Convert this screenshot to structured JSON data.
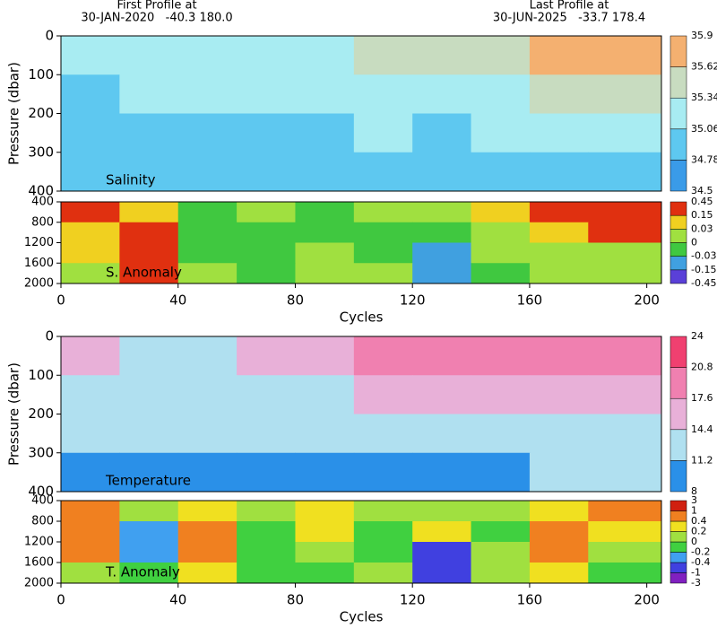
{
  "header": {
    "first_label": "First Profile at",
    "first_info": "30-JAN-2020   -40.3 180.0",
    "last_label": "Last Profile at",
    "last_info": "30-JUN-2025   -33.7 178.4"
  },
  "chart_data": [
    {
      "type": "heatmap",
      "label": "Salinity",
      "ylabel": "Pressure (dbar)",
      "xlim": [
        0,
        205
      ],
      "ylim": [
        400,
        0
      ],
      "yticks": [
        0,
        100,
        200,
        300,
        400
      ],
      "x_bins": [
        0,
        20,
        40,
        60,
        80,
        100,
        120,
        140,
        160,
        180,
        205
      ],
      "y_bins": [
        0,
        100,
        200,
        300,
        400
      ],
      "values": [
        [
          35.1,
          35.2,
          35.1,
          35.2,
          35.3,
          35.5,
          35.4,
          35.5,
          35.8,
          35.7
        ],
        [
          35.0,
          35.1,
          35.1,
          35.1,
          35.2,
          35.3,
          35.2,
          35.3,
          35.5,
          35.6
        ],
        [
          34.95,
          35.0,
          34.95,
          35.0,
          35.0,
          35.1,
          35.0,
          35.1,
          35.2,
          35.3
        ],
        [
          34.8,
          34.85,
          34.8,
          34.85,
          34.85,
          34.9,
          34.85,
          34.9,
          34.95,
          35.0
        ]
      ],
      "colorbar": {
        "ticks": [
          34.5,
          34.78,
          35.06,
          35.34,
          35.62,
          35.9
        ],
        "colors": [
          "#3a9be8",
          "#5ec8f0",
          "#a8ecf2",
          "#c8dcc0",
          "#f4b070"
        ]
      }
    },
    {
      "type": "heatmap",
      "label": "S. Anomaly",
      "xlabel": "Cycles",
      "xlim": [
        0,
        205
      ],
      "xticks": [
        0,
        40,
        80,
        120,
        160,
        200
      ],
      "ylim": [
        2000,
        400
      ],
      "yticks": [
        400,
        800,
        1200,
        1600,
        2000
      ],
      "x_bins": [
        0,
        20,
        40,
        60,
        80,
        100,
        120,
        140,
        160,
        180,
        205
      ],
      "y_bins": [
        400,
        800,
        1200,
        1600,
        2000
      ],
      "values": [
        [
          0.2,
          0.1,
          0.0,
          0.02,
          0.0,
          0.01,
          0.02,
          0.05,
          0.2,
          0.3
        ],
        [
          0.1,
          0.2,
          0.0,
          -0.01,
          -0.01,
          0.0,
          0.0,
          0.02,
          0.1,
          0.3
        ],
        [
          0.05,
          0.3,
          0.0,
          -0.01,
          0.01,
          0.0,
          -0.1,
          0.02,
          0.03,
          0.03
        ],
        [
          0.02,
          0.2,
          0.02,
          0.0,
          0.02,
          0.01,
          -0.1,
          0.0,
          0.03,
          0.01
        ]
      ],
      "colorbar": {
        "ticks": [
          -0.45,
          -0.15,
          -0.03,
          0,
          0.03,
          0.15,
          0.45
        ],
        "colors": [
          "#5a40d8",
          "#40a0e0",
          "#40c840",
          "#a0e040",
          "#f0d020",
          "#e03010"
        ]
      }
    },
    {
      "type": "heatmap",
      "label": "Temperature",
      "ylabel": "Pressure (dbar)",
      "xlim": [
        0,
        205
      ],
      "ylim": [
        400,
        0
      ],
      "yticks": [
        0,
        100,
        200,
        300,
        400
      ],
      "x_bins": [
        0,
        20,
        40,
        60,
        80,
        100,
        120,
        140,
        160,
        180,
        205
      ],
      "y_bins": [
        0,
        100,
        200,
        300,
        400
      ],
      "values": [
        [
          15,
          14,
          14,
          15,
          16,
          18,
          19,
          19,
          20,
          19
        ],
        [
          13,
          13,
          13,
          13,
          14,
          15,
          16,
          16,
          17,
          17
        ],
        [
          12,
          12,
          12,
          12,
          12,
          13,
          13,
          13,
          14,
          14
        ],
        [
          10,
          11,
          10,
          11,
          10,
          11,
          11,
          11,
          12,
          12
        ]
      ],
      "colorbar": {
        "ticks": [
          8,
          11.2,
          14.4,
          17.6,
          20.8,
          24
        ],
        "colors": [
          "#2a90e8",
          "#b0e0f0",
          "#e8b0d8",
          "#f080b0",
          "#f04070"
        ]
      }
    },
    {
      "type": "heatmap",
      "label": "T. Anomaly",
      "xlabel": "Cycles",
      "xlim": [
        0,
        205
      ],
      "xticks": [
        0,
        40,
        80,
        120,
        160,
        200
      ],
      "ylim": [
        2000,
        400
      ],
      "yticks": [
        400,
        800,
        1200,
        1600,
        2000
      ],
      "x_bins": [
        0,
        20,
        40,
        60,
        80,
        100,
        120,
        140,
        160,
        180,
        205
      ],
      "y_bins": [
        400,
        800,
        1200,
        1600,
        2000
      ],
      "values": [
        [
          0.5,
          0.1,
          0.3,
          0.1,
          0.3,
          0.1,
          0.2,
          0.1,
          0.3,
          0.5
        ],
        [
          0.6,
          -0.2,
          0.5,
          0.0,
          0.3,
          -0.1,
          0.3,
          0.0,
          0.5,
          0.3
        ],
        [
          0.5,
          -0.3,
          0.6,
          0.0,
          0.1,
          0.0,
          -0.5,
          0.1,
          0.5,
          0.1
        ],
        [
          0.2,
          -0.1,
          0.3,
          0.0,
          0.0,
          0.1,
          -0.5,
          0.2,
          0.3,
          0.0
        ]
      ],
      "colorbar": {
        "ticks": [
          -3,
          -1,
          -0.4,
          -0.2,
          0,
          0.2,
          0.4,
          1,
          3
        ],
        "colors": [
          "#8020c0",
          "#4040e0",
          "#40a0f0",
          "#40d040",
          "#a0e040",
          "#f0e020",
          "#f08020",
          "#d02010"
        ]
      }
    }
  ]
}
